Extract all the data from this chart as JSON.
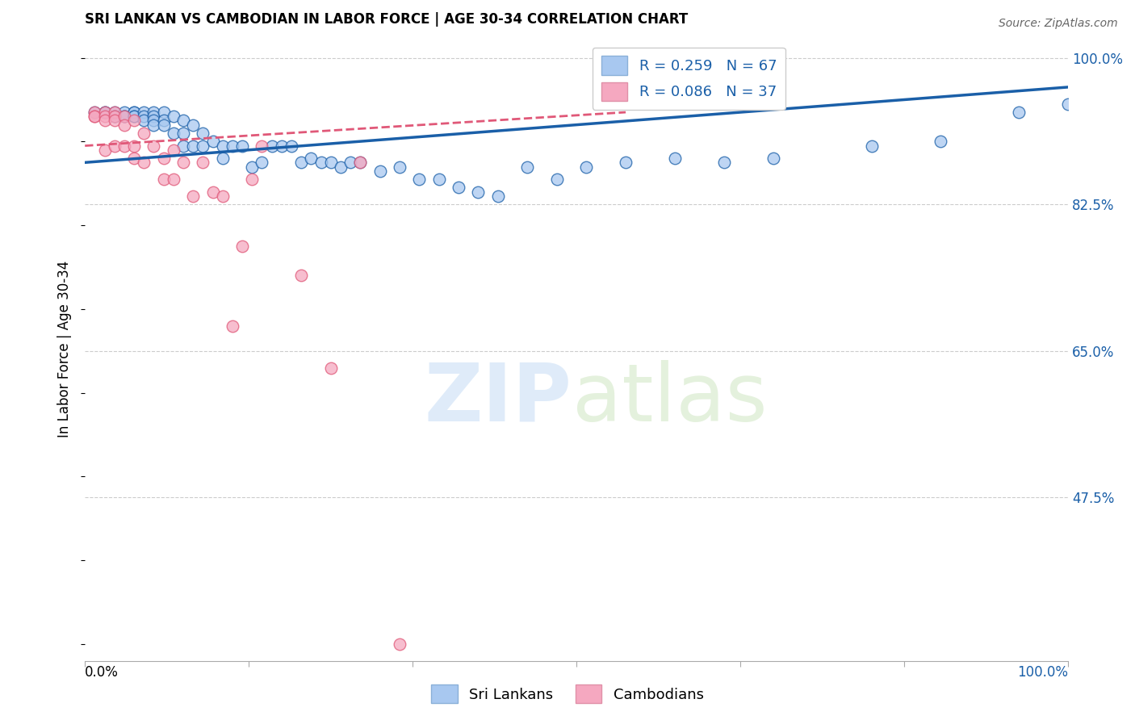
{
  "title": "SRI LANKAN VS CAMBODIAN IN LABOR FORCE | AGE 30-34 CORRELATION CHART",
  "source": "Source: ZipAtlas.com",
  "ylabel": "In Labor Force | Age 30-34",
  "xmin": 0.0,
  "xmax": 1.0,
  "ymin": 0.28,
  "ymax": 1.025,
  "legend_blue_r": "R = 0.259",
  "legend_blue_n": "N = 67",
  "legend_pink_r": "R = 0.086",
  "legend_pink_n": "N = 37",
  "blue_color": "#A8C8F0",
  "pink_color": "#F5A8C0",
  "blue_line_color": "#1A5FA8",
  "pink_line_color": "#E05878",
  "ytick_values": [
    1.0,
    0.825,
    0.65,
    0.475
  ],
  "ytick_labels": [
    "100.0%",
    "82.5%",
    "65.0%",
    "47.5%"
  ],
  "sri_lankans_x": [
    0.01,
    0.02,
    0.02,
    0.03,
    0.03,
    0.03,
    0.04,
    0.04,
    0.04,
    0.05,
    0.05,
    0.05,
    0.05,
    0.06,
    0.06,
    0.06,
    0.07,
    0.07,
    0.07,
    0.07,
    0.08,
    0.08,
    0.08,
    0.09,
    0.09,
    0.1,
    0.1,
    0.1,
    0.11,
    0.11,
    0.12,
    0.12,
    0.13,
    0.14,
    0.14,
    0.15,
    0.16,
    0.17,
    0.18,
    0.19,
    0.2,
    0.21,
    0.22,
    0.23,
    0.24,
    0.25,
    0.26,
    0.27,
    0.28,
    0.3,
    0.32,
    0.34,
    0.36,
    0.38,
    0.4,
    0.42,
    0.45,
    0.48,
    0.51,
    0.55,
    0.6,
    0.65,
    0.7,
    0.8,
    0.87,
    0.95,
    1.0
  ],
  "sri_lankans_y": [
    0.935,
    0.935,
    0.935,
    0.935,
    0.93,
    0.93,
    0.935,
    0.93,
    0.93,
    0.935,
    0.935,
    0.93,
    0.93,
    0.935,
    0.93,
    0.925,
    0.935,
    0.93,
    0.925,
    0.92,
    0.935,
    0.925,
    0.92,
    0.93,
    0.91,
    0.925,
    0.91,
    0.895,
    0.92,
    0.895,
    0.91,
    0.895,
    0.9,
    0.895,
    0.88,
    0.895,
    0.895,
    0.87,
    0.875,
    0.895,
    0.895,
    0.895,
    0.875,
    0.88,
    0.875,
    0.875,
    0.87,
    0.875,
    0.875,
    0.865,
    0.87,
    0.855,
    0.855,
    0.845,
    0.84,
    0.835,
    0.87,
    0.855,
    0.87,
    0.875,
    0.88,
    0.875,
    0.88,
    0.895,
    0.9,
    0.935,
    0.945
  ],
  "cambodians_x": [
    0.01,
    0.01,
    0.01,
    0.02,
    0.02,
    0.02,
    0.02,
    0.03,
    0.03,
    0.03,
    0.03,
    0.04,
    0.04,
    0.04,
    0.05,
    0.05,
    0.05,
    0.06,
    0.06,
    0.07,
    0.08,
    0.08,
    0.09,
    0.09,
    0.1,
    0.11,
    0.12,
    0.13,
    0.14,
    0.15,
    0.16,
    0.17,
    0.18,
    0.22,
    0.25,
    0.28,
    0.32
  ],
  "cambodians_y": [
    0.935,
    0.93,
    0.93,
    0.935,
    0.93,
    0.925,
    0.89,
    0.935,
    0.93,
    0.925,
    0.895,
    0.93,
    0.92,
    0.895,
    0.925,
    0.895,
    0.88,
    0.91,
    0.875,
    0.895,
    0.88,
    0.855,
    0.89,
    0.855,
    0.875,
    0.835,
    0.875,
    0.84,
    0.835,
    0.68,
    0.775,
    0.855,
    0.895,
    0.74,
    0.63,
    0.875,
    0.3
  ]
}
